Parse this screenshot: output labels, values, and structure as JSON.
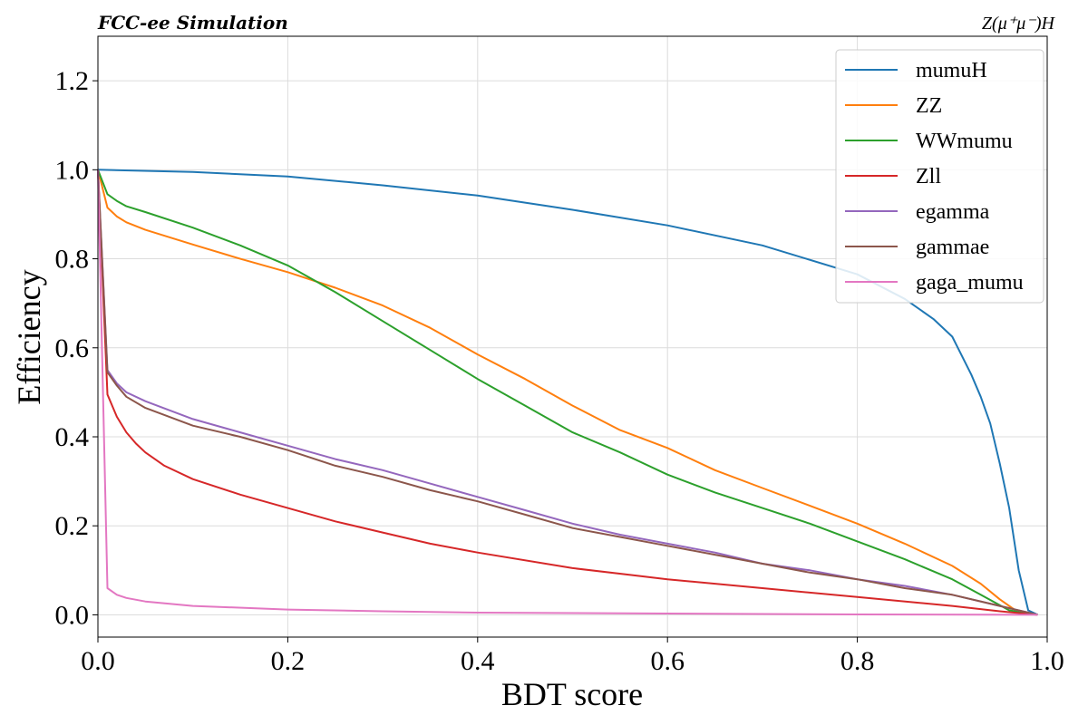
{
  "chart_data": {
    "type": "line",
    "title_left": "FCC-ee Simulation",
    "title_right": "Z(μ⁺μ⁻)H",
    "xlabel": "BDT score",
    "ylabel": "Efficiency",
    "xlim": [
      0,
      1.0
    ],
    "ylim": [
      -0.05,
      1.3
    ],
    "xticks": [
      0.0,
      0.2,
      0.4,
      0.6,
      0.8,
      1.0
    ],
    "xtick_labels": [
      "0.0",
      "0.2",
      "0.4",
      "0.6",
      "0.8",
      "1.0"
    ],
    "yticks": [
      0.0,
      0.2,
      0.4,
      0.6,
      0.8,
      1.0,
      1.2
    ],
    "ytick_labels": [
      "0.0",
      "0.2",
      "0.4",
      "0.6",
      "0.8",
      "1.0",
      "1.2"
    ],
    "grid": true,
    "legend_position": "top-right",
    "series": [
      {
        "name": "mumuH",
        "color": "#1f77b4",
        "x": [
          0,
          0.1,
          0.2,
          0.3,
          0.4,
          0.5,
          0.6,
          0.7,
          0.8,
          0.85,
          0.88,
          0.9,
          0.92,
          0.93,
          0.94,
          0.95,
          0.96,
          0.97,
          0.98,
          0.99
        ],
        "y": [
          1.0,
          0.995,
          0.985,
          0.965,
          0.942,
          0.91,
          0.875,
          0.83,
          0.765,
          0.71,
          0.665,
          0.625,
          0.54,
          0.49,
          0.43,
          0.34,
          0.24,
          0.1,
          0.01,
          0.0
        ]
      },
      {
        "name": "ZZ",
        "color": "#ff7f0e",
        "x": [
          0,
          0.01,
          0.02,
          0.03,
          0.05,
          0.1,
          0.15,
          0.2,
          0.25,
          0.3,
          0.35,
          0.4,
          0.45,
          0.5,
          0.55,
          0.6,
          0.65,
          0.7,
          0.75,
          0.8,
          0.85,
          0.9,
          0.93,
          0.95,
          0.97,
          0.99
        ],
        "y": [
          1.0,
          0.915,
          0.895,
          0.882,
          0.865,
          0.832,
          0.8,
          0.77,
          0.735,
          0.695,
          0.645,
          0.585,
          0.53,
          0.47,
          0.415,
          0.375,
          0.325,
          0.285,
          0.245,
          0.205,
          0.16,
          0.11,
          0.07,
          0.035,
          0.005,
          0.0
        ]
      },
      {
        "name": "WWmumu",
        "color": "#2ca02c",
        "x": [
          0,
          0.01,
          0.02,
          0.03,
          0.05,
          0.1,
          0.15,
          0.2,
          0.25,
          0.3,
          0.35,
          0.4,
          0.45,
          0.5,
          0.55,
          0.6,
          0.65,
          0.7,
          0.75,
          0.8,
          0.85,
          0.9,
          0.93,
          0.96,
          0.99
        ],
        "y": [
          1.0,
          0.945,
          0.93,
          0.918,
          0.905,
          0.87,
          0.83,
          0.785,
          0.725,
          0.66,
          0.595,
          0.53,
          0.47,
          0.41,
          0.365,
          0.315,
          0.275,
          0.24,
          0.205,
          0.165,
          0.125,
          0.08,
          0.045,
          0.01,
          0.0
        ]
      },
      {
        "name": "Zll",
        "color": "#d62728",
        "x": [
          0,
          0.01,
          0.02,
          0.03,
          0.04,
          0.05,
          0.07,
          0.1,
          0.15,
          0.2,
          0.25,
          0.3,
          0.35,
          0.4,
          0.5,
          0.6,
          0.7,
          0.8,
          0.9,
          0.95,
          0.99
        ],
        "y": [
          1.0,
          0.495,
          0.445,
          0.41,
          0.385,
          0.365,
          0.335,
          0.305,
          0.27,
          0.24,
          0.21,
          0.185,
          0.16,
          0.14,
          0.105,
          0.08,
          0.06,
          0.04,
          0.02,
          0.008,
          0.0
        ]
      },
      {
        "name": "egamma",
        "color": "#9467bd",
        "x": [
          0,
          0.01,
          0.02,
          0.03,
          0.05,
          0.1,
          0.15,
          0.2,
          0.25,
          0.3,
          0.35,
          0.4,
          0.45,
          0.5,
          0.55,
          0.6,
          0.65,
          0.7,
          0.75,
          0.8,
          0.85,
          0.9,
          0.95,
          0.99
        ],
        "y": [
          1.0,
          0.55,
          0.52,
          0.5,
          0.48,
          0.44,
          0.41,
          0.38,
          0.35,
          0.325,
          0.295,
          0.265,
          0.235,
          0.205,
          0.18,
          0.16,
          0.14,
          0.115,
          0.1,
          0.08,
          0.065,
          0.045,
          0.02,
          0.0
        ]
      },
      {
        "name": "gammae",
        "color": "#8c564b",
        "x": [
          0,
          0.01,
          0.02,
          0.03,
          0.05,
          0.1,
          0.15,
          0.2,
          0.25,
          0.3,
          0.35,
          0.4,
          0.45,
          0.5,
          0.55,
          0.6,
          0.65,
          0.7,
          0.75,
          0.8,
          0.85,
          0.9,
          0.95,
          0.99
        ],
        "y": [
          1.0,
          0.545,
          0.515,
          0.49,
          0.465,
          0.425,
          0.4,
          0.37,
          0.335,
          0.31,
          0.28,
          0.255,
          0.225,
          0.195,
          0.175,
          0.155,
          0.135,
          0.115,
          0.095,
          0.08,
          0.06,
          0.045,
          0.02,
          0.0
        ]
      },
      {
        "name": "gaga_mumu",
        "color": "#e377c2",
        "x": [
          0,
          0.01,
          0.02,
          0.03,
          0.05,
          0.1,
          0.2,
          0.3,
          0.4,
          0.6,
          0.8,
          0.99
        ],
        "y": [
          1.0,
          0.06,
          0.045,
          0.038,
          0.03,
          0.02,
          0.012,
          0.008,
          0.005,
          0.003,
          0.001,
          0.0
        ]
      }
    ]
  }
}
